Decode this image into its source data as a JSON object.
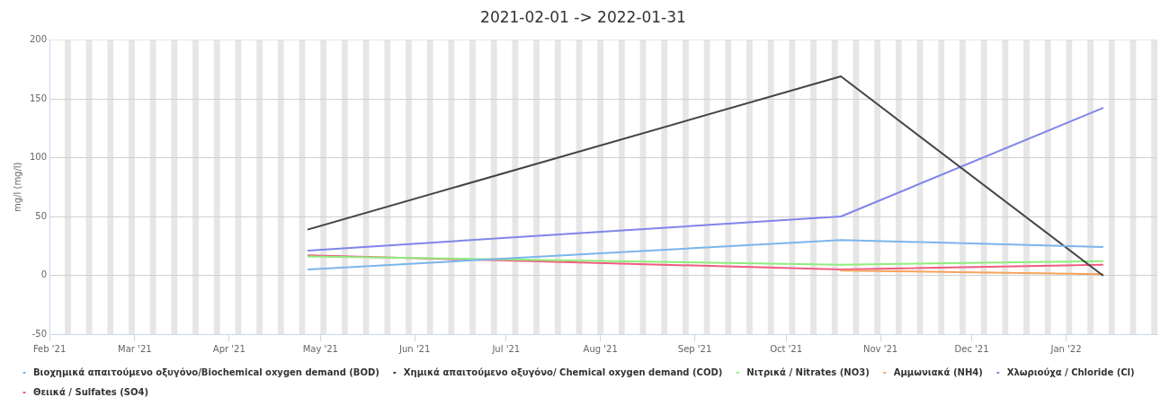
{
  "chart_data": {
    "type": "line",
    "title": "2021-02-01 -> 2022-01-31",
    "ylabel": "mg/l (mg/l)",
    "x": [
      "2021-04-27",
      "2021-10-19",
      "2022-01-13"
    ],
    "xlim": [
      "2021-02-01",
      "2022-01-31"
    ],
    "xticks": [
      {
        "value": "2021-02-01",
        "label": "Feb '21"
      },
      {
        "value": "2021-03-01",
        "label": "Mar '21"
      },
      {
        "value": "2021-04-01",
        "label": "Apr '21"
      },
      {
        "value": "2021-05-01",
        "label": "May '21"
      },
      {
        "value": "2021-06-01",
        "label": "Jun '21"
      },
      {
        "value": "2021-07-01",
        "label": "Jul '21"
      },
      {
        "value": "2021-08-01",
        "label": "Aug '21"
      },
      {
        "value": "2021-09-01",
        "label": "Sep '21"
      },
      {
        "value": "2021-10-01",
        "label": "Oct '21"
      },
      {
        "value": "2021-11-01",
        "label": "Nov '21"
      },
      {
        "value": "2021-12-01",
        "label": "Dec '21"
      },
      {
        "value": "2022-01-01",
        "label": "Jan '22"
      }
    ],
    "ylim": [
      -50,
      200
    ],
    "yticks": [
      -50,
      0,
      50,
      100,
      150,
      200
    ],
    "grid": "y",
    "legend": "bottom",
    "marker": "none",
    "line_style": "solid",
    "series": [
      {
        "name": "Βιοχημικά απαιτούμενο οξυγόνο/Biochemical oxygen demand (BOD)",
        "color": "#7cb5ec",
        "values": [
          5,
          30,
          24
        ]
      },
      {
        "name": "Χημικά απαιτούμενο οξυγόνο/ Chemical oxygen demand (COD)",
        "color": "#434348",
        "values": [
          39,
          169,
          0
        ]
      },
      {
        "name": "Νιτρικά / Nitrates (NO3)",
        "color": "#90ed7d",
        "values": [
          16,
          9,
          12
        ]
      },
      {
        "name": "Αμμωνιακά (NH4)",
        "color": "#f7a35c",
        "values": [
          null,
          4,
          1
        ]
      },
      {
        "name": "Χλωριούχα / Chloride (Cl)",
        "color": "#8085e9",
        "values": [
          21,
          50,
          142
        ]
      },
      {
        "name": "Θειικά / Sulfates (SO4)",
        "color": "#f15c80",
        "values": [
          17,
          5,
          9
        ]
      }
    ],
    "bands": [
      {
        "axis": "x",
        "from": "2021-02-06",
        "to": "2021-02-08",
        "color": "#e6e6e6"
      },
      {
        "axis": "x",
        "from": "2021-02-13",
        "to": "2021-02-15",
        "color": "#e6e6e6"
      },
      {
        "axis": "x",
        "from": "2021-02-20",
        "to": "2021-02-22",
        "color": "#e6e6e6"
      },
      {
        "axis": "x",
        "from": "2021-02-27",
        "to": "2021-03-01",
        "color": "#e6e6e6"
      },
      {
        "axis": "x",
        "from": "2021-03-06",
        "to": "2021-03-08",
        "color": "#e6e6e6"
      },
      {
        "axis": "x",
        "from": "2021-03-13",
        "to": "2021-03-15",
        "color": "#e6e6e6"
      },
      {
        "axis": "x",
        "from": "2021-03-20",
        "to": "2021-03-22",
        "color": "#e6e6e6"
      },
      {
        "axis": "x",
        "from": "2021-03-27",
        "to": "2021-03-29",
        "color": "#e6e6e6"
      },
      {
        "axis": "x",
        "from": "2021-04-03",
        "to": "2021-04-05",
        "color": "#e6e6e6"
      },
      {
        "axis": "x",
        "from": "2021-04-10",
        "to": "2021-04-12",
        "color": "#e6e6e6"
      },
      {
        "axis": "x",
        "from": "2021-04-17",
        "to": "2021-04-19",
        "color": "#e6e6e6"
      },
      {
        "axis": "x",
        "from": "2021-04-24",
        "to": "2021-04-26",
        "color": "#e6e6e6"
      },
      {
        "axis": "x",
        "from": "2021-05-01",
        "to": "2021-05-03",
        "color": "#e6e6e6"
      },
      {
        "axis": "x",
        "from": "2021-05-08",
        "to": "2021-05-10",
        "color": "#e6e6e6"
      },
      {
        "axis": "x",
        "from": "2021-05-15",
        "to": "2021-05-17",
        "color": "#e6e6e6"
      },
      {
        "axis": "x",
        "from": "2021-05-22",
        "to": "2021-05-24",
        "color": "#e6e6e6"
      },
      {
        "axis": "x",
        "from": "2021-05-29",
        "to": "2021-05-31",
        "color": "#e6e6e6"
      },
      {
        "axis": "x",
        "from": "2021-06-05",
        "to": "2021-06-07",
        "color": "#e6e6e6"
      },
      {
        "axis": "x",
        "from": "2021-06-12",
        "to": "2021-06-14",
        "color": "#e6e6e6"
      },
      {
        "axis": "x",
        "from": "2021-06-19",
        "to": "2021-06-21",
        "color": "#e6e6e6"
      },
      {
        "axis": "x",
        "from": "2021-06-26",
        "to": "2021-06-28",
        "color": "#e6e6e6"
      },
      {
        "axis": "x",
        "from": "2021-07-03",
        "to": "2021-07-05",
        "color": "#e6e6e6"
      },
      {
        "axis": "x",
        "from": "2021-07-10",
        "to": "2021-07-12",
        "color": "#e6e6e6"
      },
      {
        "axis": "x",
        "from": "2021-07-17",
        "to": "2021-07-19",
        "color": "#e6e6e6"
      },
      {
        "axis": "x",
        "from": "2021-07-24",
        "to": "2021-07-26",
        "color": "#e6e6e6"
      },
      {
        "axis": "x",
        "from": "2021-07-31",
        "to": "2021-08-02",
        "color": "#e6e6e6"
      },
      {
        "axis": "x",
        "from": "2021-08-07",
        "to": "2021-08-09",
        "color": "#e6e6e6"
      },
      {
        "axis": "x",
        "from": "2021-08-14",
        "to": "2021-08-16",
        "color": "#e6e6e6"
      },
      {
        "axis": "x",
        "from": "2021-08-21",
        "to": "2021-08-23",
        "color": "#e6e6e6"
      },
      {
        "axis": "x",
        "from": "2021-08-28",
        "to": "2021-08-30",
        "color": "#e6e6e6"
      },
      {
        "axis": "x",
        "from": "2021-09-04",
        "to": "2021-09-06",
        "color": "#e6e6e6"
      },
      {
        "axis": "x",
        "from": "2021-09-11",
        "to": "2021-09-13",
        "color": "#e6e6e6"
      },
      {
        "axis": "x",
        "from": "2021-09-18",
        "to": "2021-09-20",
        "color": "#e6e6e6"
      },
      {
        "axis": "x",
        "from": "2021-09-25",
        "to": "2021-09-27",
        "color": "#e6e6e6"
      },
      {
        "axis": "x",
        "from": "2021-10-02",
        "to": "2021-10-04",
        "color": "#e6e6e6"
      },
      {
        "axis": "x",
        "from": "2021-10-09",
        "to": "2021-10-11",
        "color": "#e6e6e6"
      },
      {
        "axis": "x",
        "from": "2021-10-16",
        "to": "2021-10-18",
        "color": "#e6e6e6"
      },
      {
        "axis": "x",
        "from": "2021-10-23",
        "to": "2021-10-25",
        "color": "#e6e6e6"
      },
      {
        "axis": "x",
        "from": "2021-10-30",
        "to": "2021-11-01",
        "color": "#e6e6e6"
      },
      {
        "axis": "x",
        "from": "2021-11-06",
        "to": "2021-11-08",
        "color": "#e6e6e6"
      },
      {
        "axis": "x",
        "from": "2021-11-13",
        "to": "2021-11-15",
        "color": "#e6e6e6"
      },
      {
        "axis": "x",
        "from": "2021-11-20",
        "to": "2021-11-22",
        "color": "#e6e6e6"
      },
      {
        "axis": "x",
        "from": "2021-11-27",
        "to": "2021-11-29",
        "color": "#e6e6e6"
      },
      {
        "axis": "x",
        "from": "2021-12-04",
        "to": "2021-12-06",
        "color": "#e6e6e6"
      },
      {
        "axis": "x",
        "from": "2021-12-11",
        "to": "2021-12-13",
        "color": "#e6e6e6"
      },
      {
        "axis": "x",
        "from": "2021-12-18",
        "to": "2021-12-20",
        "color": "#e6e6e6"
      },
      {
        "axis": "x",
        "from": "2021-12-25",
        "to": "2021-12-27",
        "color": "#e6e6e6"
      },
      {
        "axis": "x",
        "from": "2022-01-01",
        "to": "2022-01-03",
        "color": "#e6e6e6"
      },
      {
        "axis": "x",
        "from": "2022-01-08",
        "to": "2022-01-10",
        "color": "#e6e6e6"
      },
      {
        "axis": "x",
        "from": "2022-01-15",
        "to": "2022-01-17",
        "color": "#e6e6e6"
      },
      {
        "axis": "x",
        "from": "2022-01-22",
        "to": "2022-01-24",
        "color": "#e6e6e6"
      },
      {
        "axis": "x",
        "from": "2022-01-29",
        "to": "2022-01-31",
        "color": "#e6e6e6"
      }
    ]
  }
}
